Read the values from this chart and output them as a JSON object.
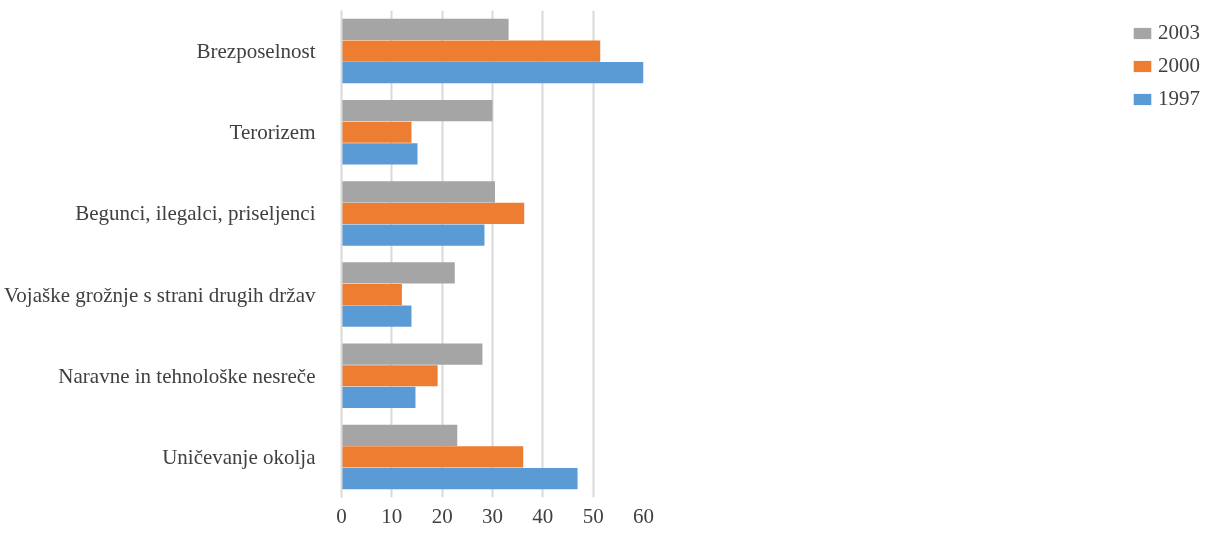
{
  "chart_data": {
    "type": "bar",
    "orientation": "horizontal",
    "categories": [
      "Brezposelnost",
      "Terorizem",
      "Begunci, ilegalci, priseljenci",
      "Vojaške grožnje s strani drugih držav",
      "Naravne in tehnološke nesreče",
      "Uničevanje okolja"
    ],
    "series": [
      {
        "name": "1997",
        "color": "#5b9bd5",
        "values": [
          60,
          15.1,
          28.4,
          13.9,
          14.7,
          46.9
        ]
      },
      {
        "name": "2000",
        "color": "#ed7d31",
        "values": [
          51.4,
          13.9,
          36.3,
          12,
          19.1,
          36.1
        ]
      },
      {
        "name": "2003",
        "color": "#a5a5a5",
        "values": [
          33.2,
          30,
          30.5,
          22.5,
          28,
          23
        ]
      }
    ],
    "xlim": [
      0,
      60
    ],
    "xticks": [
      0,
      10,
      20,
      30,
      40,
      50,
      60
    ],
    "grid": "x",
    "legend": "right"
  }
}
